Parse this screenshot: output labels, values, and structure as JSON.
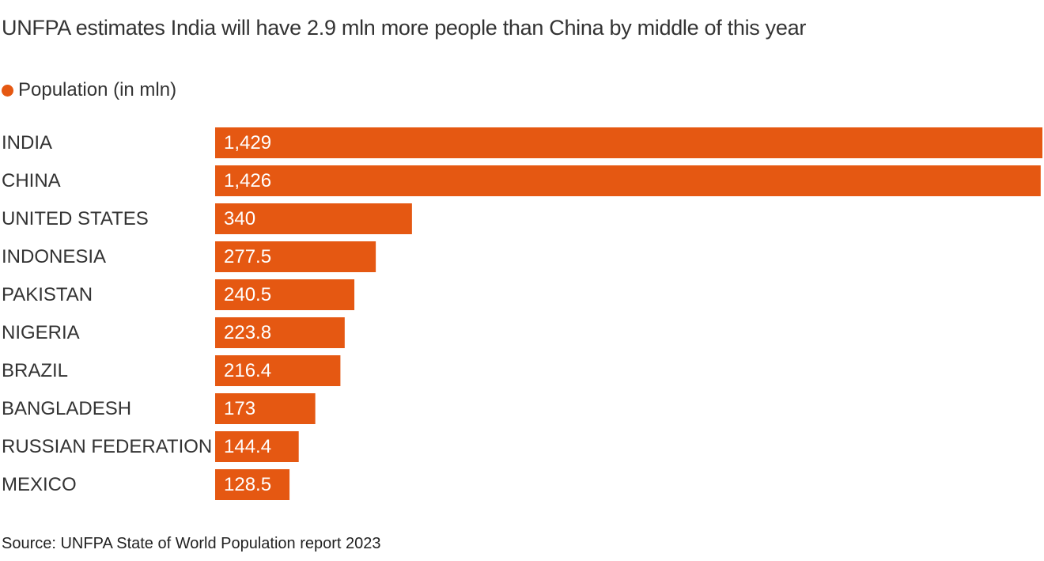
{
  "title": "UNFPA estimates India will have 2.9 mln more people than China by middle of this year",
  "legend": {
    "label": "Population (in mln)",
    "color": "#e55812"
  },
  "source": "Source: UNFPA State of World Population report 2023",
  "colors": {
    "bar": "#e55812",
    "bar_label": "#ffffff",
    "category_label": "#333333"
  },
  "chart_data": {
    "type": "bar",
    "orientation": "horizontal",
    "categories": [
      "INDIA",
      "CHINA",
      "UNITED STATES",
      "INDONESIA",
      "PAKISTAN",
      "NIGERIA",
      "BRAZIL",
      "BANGLADESH",
      "RUSSIAN FEDERATION",
      "MEXICO"
    ],
    "series": [
      {
        "name": "Population (in mln)",
        "values": [
          1429,
          1426,
          340,
          277.5,
          240.5,
          223.8,
          216.4,
          173,
          144.4,
          128.5
        ]
      }
    ],
    "value_labels": [
      "1,429",
      "1,426",
      "340",
      "277.5",
      "240.5",
      "223.8",
      "216.4",
      "173",
      "144.4",
      "128.5"
    ],
    "xlim": [
      0,
      1429
    ],
    "grid": false,
    "legend_position": "top-left"
  }
}
